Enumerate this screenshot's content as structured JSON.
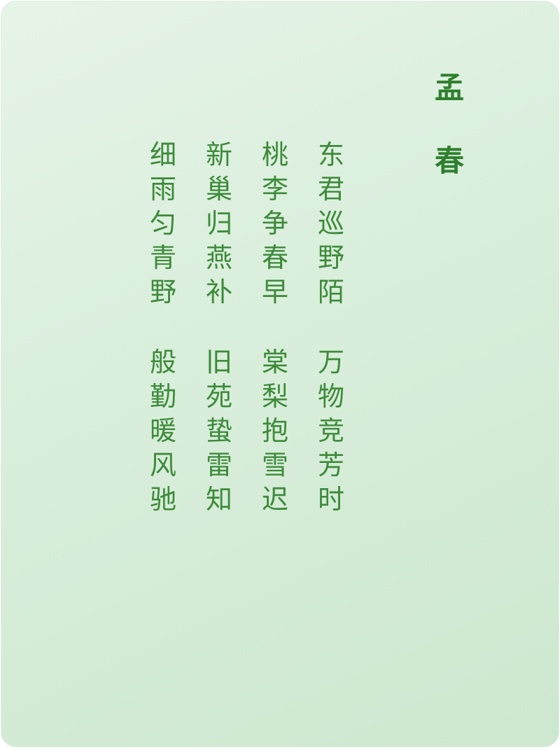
{
  "poem": {
    "title": [
      "孟",
      "春"
    ],
    "stanza1": {
      "col1": [
        "东",
        "君",
        "巡",
        "野",
        "陌"
      ],
      "col2": [
        "桃",
        "李",
        "争",
        "春",
        "早"
      ],
      "col3": [
        "新",
        "巢",
        "归",
        "燕",
        "补"
      ],
      "col4": [
        "细",
        "雨",
        "匀",
        "青",
        "野"
      ]
    },
    "stanza2": {
      "col1": [
        "万",
        "物",
        "竞",
        "芳",
        "时"
      ],
      "col2": [
        "棠",
        "梨",
        "抱",
        "雪",
        "迟"
      ],
      "col3": [
        "旧",
        "苑",
        "蛰",
        "雷",
        "知"
      ],
      "col4": [
        "般",
        "勤",
        "暖",
        "风",
        "驰"
      ]
    }
  },
  "colors": {
    "text": "#3d8b3a",
    "title": "#2f7f2e",
    "background_start": "#e6f4e8",
    "background_end": "#cde8cf"
  }
}
